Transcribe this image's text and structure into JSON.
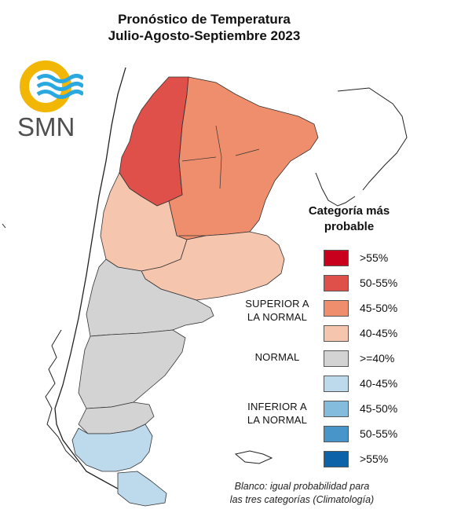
{
  "title_line1": "Pronóstico de Temperatura",
  "title_line2": "Julio-Agosto-Septiembre 2023",
  "logo": {
    "text": "SMN",
    "icon": "smn-sun-waves-logo",
    "colors": {
      "sun": "#f2b705",
      "waves": "#2aa8e0",
      "text": "#4f4f4f"
    }
  },
  "legend": {
    "title_line1": "Categoría más",
    "title_line2": "probable",
    "groups": [
      {
        "line1": "SUPERIOR A",
        "line2": "LA NORMAL"
      },
      {
        "line1": "NORMAL",
        "line2": ""
      },
      {
        "line1": "INFERIOR A",
        "line2": "LA NORMAL"
      }
    ],
    "items": [
      {
        "label": ">55%",
        "color": "#c8001e"
      },
      {
        "label": "50-55%",
        "color": "#e0504b"
      },
      {
        "label": "45-50%",
        "color": "#ee8e6c"
      },
      {
        "label": "40-45%",
        "color": "#f5c5ae"
      },
      {
        "label": ">=40%",
        "color": "#d3d3d3"
      },
      {
        "label": "40-45%",
        "color": "#bcdaec"
      },
      {
        "label": "45-50%",
        "color": "#84bcde"
      },
      {
        "label": "50-55%",
        "color": "#4895ca"
      },
      {
        "label": ">55%",
        "color": "#0e63a8"
      }
    ]
  },
  "footnote_line1": "Blanco: igual probabilidad para",
  "footnote_line2": "las tres categorías (Climatología)"
}
